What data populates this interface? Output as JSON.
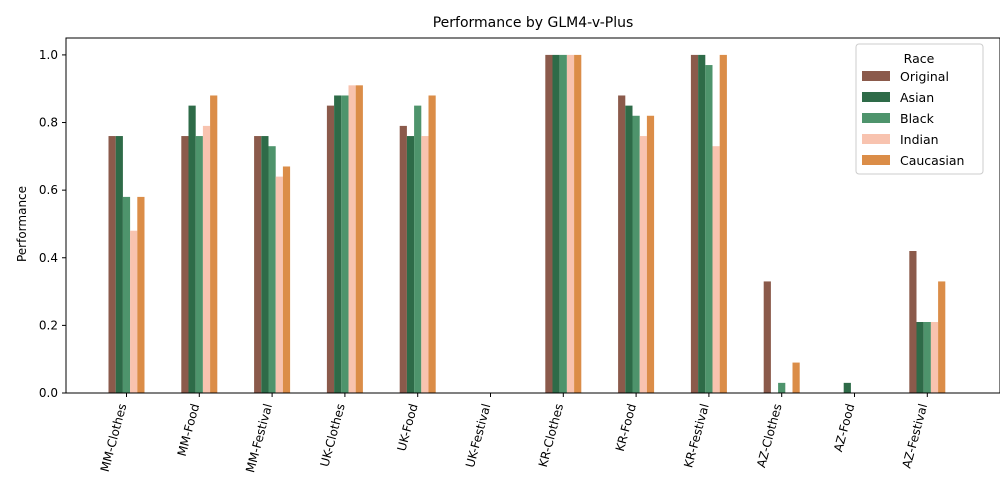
{
  "chart_data": {
    "type": "bar",
    "title": "Performance by GLM4-v-Plus",
    "xlabel": "",
    "ylabel": "Performance",
    "ylim": [
      0,
      1.05
    ],
    "yticks": [
      0.0,
      0.2,
      0.4,
      0.6,
      0.8,
      1.0
    ],
    "ytick_labels": [
      "0.0",
      "0.2",
      "0.4",
      "0.6",
      "0.8",
      "1.0"
    ],
    "categories": [
      "MM-Clothes",
      "MM-Food",
      "MM-Festival",
      "UK-Clothes",
      "UK-Food",
      "UK-Festival",
      "KR-Clothes",
      "KR-Food",
      "KR-Festival",
      "AZ-Clothes",
      "AZ-Food",
      "AZ-Festival"
    ],
    "legend": {
      "title": "Race",
      "placement": "top-right"
    },
    "grid": false,
    "series": [
      {
        "name": "Original",
        "color": "#8B5A4B",
        "values": [
          0.76,
          0.76,
          0.76,
          0.85,
          0.79,
          0.0,
          1.0,
          0.88,
          1.0,
          0.33,
          0.0,
          0.42
        ]
      },
      {
        "name": "Asian",
        "color": "#2E6B48",
        "values": [
          0.76,
          0.85,
          0.76,
          0.88,
          0.76,
          0.0,
          1.0,
          0.85,
          1.0,
          0.0,
          0.03,
          0.21
        ]
      },
      {
        "name": "Black",
        "color": "#4E946C",
        "values": [
          0.58,
          0.76,
          0.73,
          0.88,
          0.85,
          0.0,
          1.0,
          0.82,
          0.97,
          0.03,
          0.0,
          0.21
        ]
      },
      {
        "name": "Indian",
        "color": "#F8C3AF",
        "values": [
          0.48,
          0.79,
          0.64,
          0.91,
          0.76,
          0.0,
          1.0,
          0.76,
          0.73,
          0.0,
          0.0,
          0.21
        ]
      },
      {
        "name": "Caucasian",
        "color": "#DB8D48",
        "values": [
          0.58,
          0.88,
          0.67,
          0.91,
          0.88,
          0.0,
          1.0,
          0.82,
          1.0,
          0.09,
          0.0,
          0.33
        ]
      }
    ]
  }
}
